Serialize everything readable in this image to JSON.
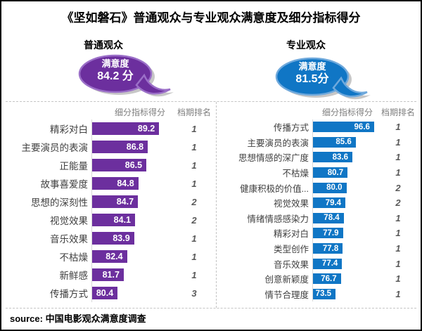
{
  "title": "《坚如磐石》普通观众与专业观众满意度及细分指标得分",
  "source": "source: 中国电影观众满意度调查",
  "colors": {
    "ordinary_purple": "#6C2F9E",
    "ordinary_purple_border": "#9B6FC8",
    "professional_blue": "#1076C5",
    "professional_blue_border": "#6FA9DC",
    "bubble_shadow_gray": "#C7C7C7",
    "rank_text_gray": "#595959",
    "header_text_gray": "#7F7F7F",
    "dashed_border_gray": "#C4C4C4"
  },
  "chart_data": [
    {
      "type": "bar",
      "orientation": "horizontal",
      "group": "普通观众",
      "badge": {
        "label": "满意度",
        "score": "84.2 分"
      },
      "score_header": "细分指标得分",
      "rank_header": "档期排名",
      "categories": [
        "精彩对白",
        "主要演员的表演",
        "正能量",
        "故事喜爱度",
        "思想的深刻性",
        "视觉效果",
        "音乐效果",
        "不枯燥",
        "新鲜感",
        "传播方式"
      ],
      "values": [
        89.2,
        86.8,
        86.5,
        84.8,
        84.7,
        84.1,
        83.9,
        82.4,
        81.7,
        80.4
      ],
      "ranks": [
        1,
        1,
        1,
        1,
        2,
        2,
        1,
        1,
        1,
        3
      ],
      "xlim": [
        75,
        92
      ],
      "grid": false,
      "bar_color": "#6C2F9E",
      "bar_border": "#9B6FC8"
    },
    {
      "type": "bar",
      "orientation": "horizontal",
      "group": "专业观众",
      "badge": {
        "label": "满意度",
        "score": "81.5分"
      },
      "score_header": "细分指标得分",
      "rank_header": "档期排名",
      "categories": [
        "传播方式",
        "主要演员的表演",
        "思想情感的深广度",
        "不枯燥",
        "健康积极的价值...",
        "视觉效果",
        "情绪情感感染力",
        "精彩对白",
        "类型创作",
        "音乐效果",
        "创意新颖度",
        "情节合理度"
      ],
      "values": [
        96.6,
        85.6,
        83.6,
        80.7,
        80.0,
        79.4,
        78.4,
        77.9,
        77.8,
        77.4,
        76.7,
        73.5
      ],
      "ranks": [
        1,
        1,
        1,
        1,
        2,
        2,
        1,
        1,
        1,
        1,
        1,
        1
      ],
      "xlim": [
        60,
        100
      ],
      "grid": false,
      "bar_color": "#1076C5",
      "bar_border": "#6FA9DC"
    }
  ]
}
